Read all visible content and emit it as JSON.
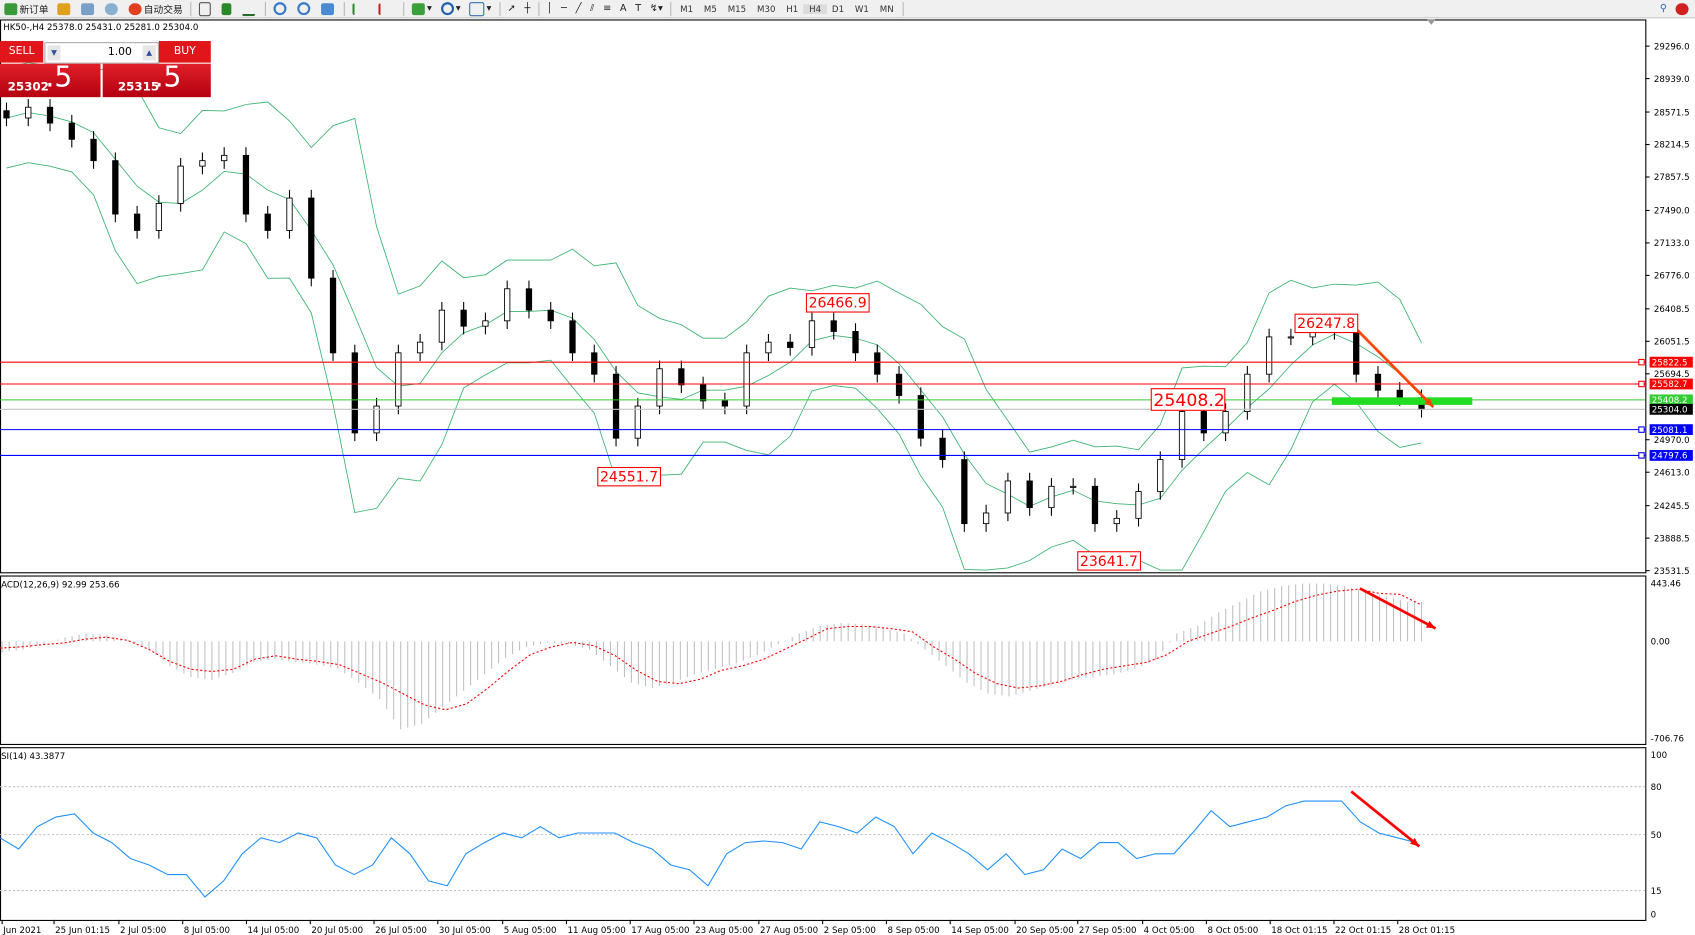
{
  "toolbar": {
    "new_order": "新订单",
    "auto_trading": "自动交易",
    "timeframes": [
      "M1",
      "M5",
      "M15",
      "M30",
      "H1",
      "H4",
      "D1",
      "W1",
      "MN"
    ],
    "active_timeframe": "H4",
    "icons": [
      "new-order-icon",
      "gold-icon",
      "history-icon",
      "signal-icon",
      "auto-trading-icon",
      "bar-chart-icon",
      "candle-chart-icon",
      "line-chart-icon",
      "zoom-in-icon",
      "zoom-out-icon",
      "tile-icon",
      "scroll-icon",
      "shift-icon",
      "indicators-icon",
      "periods-icon",
      "templates-icon",
      "cursor-icon",
      "crosshair-icon",
      "vertical-line-icon",
      "horizontal-line-icon",
      "trendline-icon",
      "channel-icon",
      "fibonacci-icon",
      "text-icon",
      "label-icon",
      "arrows-icon",
      "search-icon",
      "alert-icon"
    ]
  },
  "chart_header": "HK50-,H4  25378.0 25431.0 25281.0 25304.0",
  "one_click": {
    "sell_label": "SELL",
    "buy_label": "BUY",
    "volume": "1.00",
    "sell_price_main": "25302",
    "sell_price_frac": ".5",
    "buy_price_main": "25315",
    "buy_price_frac": ".5",
    "color": "#e0161b"
  },
  "chart_data": [
    {
      "type": "candlestick",
      "symbol": "HK50-",
      "timeframe": "H4",
      "ylim": [
        23531.5,
        29296.0
      ],
      "y_ticks": [
        "29296.0",
        "28939.0",
        "28571.5",
        "28214.5",
        "27857.5",
        "27490.0",
        "27133.0",
        "26776.0",
        "26408.5",
        "26051.5",
        "25694.5",
        "24970.0",
        "24613.0",
        "24245.5",
        "23888.5",
        "23531.5"
      ],
      "x_tick_labels": [
        "Jun 2021",
        "25 Jun 01:15",
        "2 Jul 05:00",
        "8 Jul 05:00",
        "14 Jul 05:00",
        "20 Jul 05:00",
        "26 Jul 05:00",
        "30 Jul 05:00",
        "5 Aug 05:00",
        "11 Aug 05:00",
        "17 Aug 05:00",
        "23 Aug 05:00",
        "27 Aug 05:00",
        "2 Sep 05:00",
        "8 Sep 05:00",
        "14 Sep 05:00",
        "20 Sep 05:00",
        "27 Sep 05:00",
        "4 Oct 05:00",
        "8 Oct 05:00",
        "18 Oct 01:15",
        "22 Oct 01:15",
        "28 Oct 01:15"
      ],
      "close_approx": [
        28506,
        28624,
        28450,
        28272,
        28037,
        27450,
        27270,
        27567,
        27977,
        28037,
        28095,
        27450,
        27270,
        27626,
        26746,
        25925,
        25045,
        25340,
        25925,
        26042,
        26394,
        26218,
        26277,
        26629,
        26394,
        26277,
        25925,
        25690,
        24987,
        25340,
        25750,
        25573,
        25397,
        25340,
        25925,
        26042,
        25984,
        26277,
        26160,
        25925,
        25690,
        25456,
        24987,
        24752,
        24048,
        24165,
        24517,
        24224,
        24458,
        24458,
        24048,
        24106,
        24400,
        24752,
        25280,
        25045,
        25280,
        25690,
        26100,
        26100,
        26160,
        26160,
        25690,
        25514,
        25432,
        25304
      ],
      "indicator": "Bollinger Bands",
      "horizontal_lines": [
        {
          "value": "25822.5",
          "color": "#ff0000"
        },
        {
          "value": "25582.7",
          "color": "#ff0000"
        },
        {
          "value": "25408.2",
          "color": "#32cd32"
        },
        {
          "value": "25304.0",
          "color": "#000000"
        },
        {
          "value": "25081.1",
          "color": "#0000ff"
        },
        {
          "value": "24797.6",
          "color": "#0000ff"
        }
      ],
      "annotations": [
        "26466.9",
        "26247.8",
        "25408.2",
        "24551.7",
        "23641.7"
      ]
    },
    {
      "type": "bar+line",
      "label": "ACD(12,26,9) 92.99 253.66",
      "ylim": [
        -706.76,
        443.46
      ],
      "y_ticks": [
        "443.46",
        "0.00",
        "-706.76"
      ],
      "signal": [
        -49,
        -40,
        -24,
        -12,
        16,
        32,
        8,
        -57,
        -146,
        -203,
        -219,
        -203,
        -130,
        -105,
        -130,
        -146,
        -170,
        -235,
        -300,
        -381,
        -462,
        -498,
        -454,
        -340,
        -211,
        -97,
        -40,
        -8,
        -32,
        -105,
        -211,
        -292,
        -308,
        -276,
        -211,
        -178,
        -130,
        -57,
        16,
        97,
        113,
        113,
        97,
        73,
        -40,
        -130,
        -235,
        -308,
        -340,
        -324,
        -292,
        -243,
        -203,
        -178,
        -154,
        -97,
        0,
        57,
        113,
        178,
        235,
        300,
        349,
        381,
        397,
        365,
        357,
        276
      ],
      "histogram": [
        -80,
        -60,
        -20,
        30,
        60,
        50,
        10,
        -60,
        -180,
        -260,
        -280,
        -230,
        -150,
        -130,
        -150,
        -170,
        -200,
        -300,
        -420,
        -640,
        -600,
        -480,
        -360,
        -240,
        -120,
        -40,
        -10,
        -20,
        -60,
        -180,
        -300,
        -340,
        -300,
        -240,
        -200,
        -160,
        -100,
        -20,
        60,
        120,
        140,
        130,
        100,
        60,
        -60,
        -180,
        -300,
        -380,
        -400,
        -360,
        -320,
        -280,
        -260,
        -240,
        -200,
        -140,
        60,
        120,
        220,
        300,
        380,
        420,
        440,
        440,
        420,
        380,
        340,
        300
      ]
    },
    {
      "type": "line",
      "label": "SI(14) 43.3877",
      "ylim": [
        0,
        100
      ],
      "y_ticks": [
        "100",
        "80",
        "50",
        "15",
        "0"
      ],
      "levels": [
        80,
        50,
        15
      ],
      "color": "#1e90ff",
      "values": [
        48,
        41,
        55,
        61,
        63,
        51,
        45,
        35,
        31,
        25,
        25,
        11,
        21,
        38,
        48,
        45,
        51,
        48,
        31,
        25,
        31,
        48,
        38,
        21,
        18,
        38,
        45,
        51,
        48,
        55,
        48,
        51,
        51,
        51,
        45,
        41,
        31,
        28,
        18,
        38,
        45,
        46,
        45,
        41,
        58,
        55,
        51,
        61,
        55,
        38,
        51,
        45,
        38,
        28,
        38,
        25,
        28,
        41,
        35,
        45,
        45,
        35,
        38,
        38,
        51,
        65,
        55,
        58,
        61,
        68,
        71,
        71,
        71,
        58,
        51,
        48,
        45
      ]
    }
  ]
}
